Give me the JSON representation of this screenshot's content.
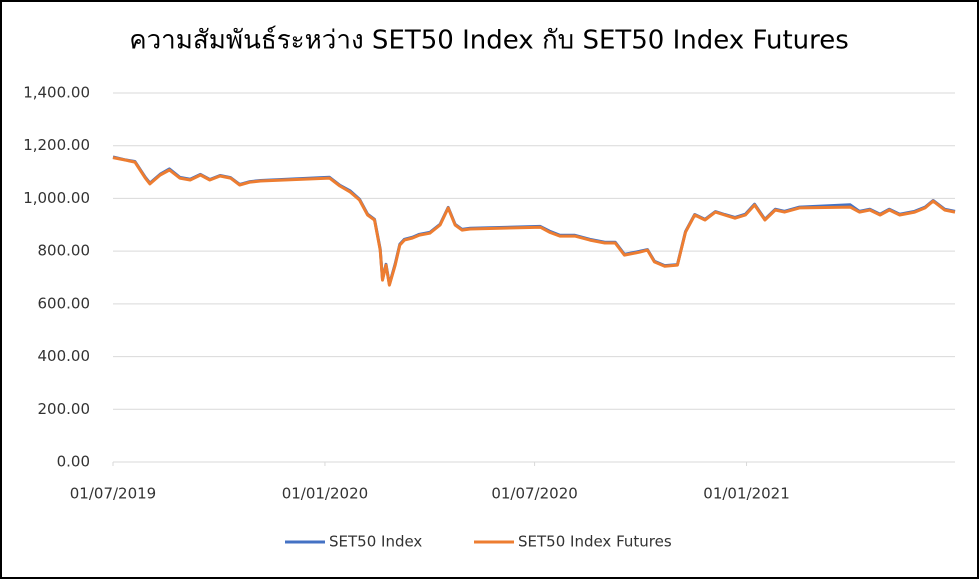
{
  "chart_data": {
    "type": "line",
    "title": "ความสัมพันธ์ระหว่าง SET50 Index กับ SET50 Index Futures",
    "x": [
      "2019-07-01",
      "2019-07-11",
      "2019-07-20",
      "2019-07-29",
      "2019-08-02",
      "2019-08-11",
      "2019-08-19",
      "2019-08-28",
      "2019-09-06",
      "2019-09-15",
      "2019-09-23",
      "2019-10-02",
      "2019-10-11",
      "2019-10-19",
      "2019-10-28",
      "2019-11-06",
      "2020-01-05",
      "2020-01-14",
      "2020-01-23",
      "2020-01-31",
      "2020-02-07",
      "2020-02-13",
      "2020-02-18",
      "2020-02-20",
      "2020-02-23",
      "2020-02-26",
      "2020-03-02",
      "2020-03-06",
      "2020-03-10",
      "2020-03-17",
      "2020-03-23",
      "2020-04-01",
      "2020-04-10",
      "2020-04-17",
      "2020-04-23",
      "2020-04-29",
      "2020-05-06",
      "2020-07-06",
      "2020-07-14",
      "2020-07-23",
      "2020-08-05",
      "2020-08-18",
      "2020-08-31",
      "2020-09-09",
      "2020-09-17",
      "2020-09-30",
      "2020-10-07",
      "2020-10-13",
      "2020-10-22",
      "2020-11-02",
      "2020-11-09",
      "2020-11-17",
      "2020-11-26",
      "2020-12-05",
      "2020-12-13",
      "2020-12-22",
      "2020-12-31",
      "2021-01-08",
      "2021-01-17",
      "2021-01-26",
      "2021-02-03",
      "2021-02-16",
      "2021-04-01",
      "2021-04-09",
      "2021-04-18",
      "2021-04-27",
      "2021-05-05",
      "2021-05-14",
      "2021-05-27",
      "2021-06-05",
      "2021-06-12",
      "2021-06-22",
      "2021-07-01"
    ],
    "series": [
      {
        "name": "SET50 Index",
        "color": "#4472c4",
        "values": [
          1157,
          1147,
          1140,
          1080,
          1058,
          1092,
          1112,
          1080,
          1073,
          1091,
          1072,
          1087,
          1079,
          1053,
          1064,
          1068,
          1080,
          1050,
          1028,
          997,
          940,
          921,
          808,
          694,
          750,
          674,
          752,
          826,
          845,
          853,
          864,
          871,
          902,
          966,
          902,
          883,
          887,
          894,
          876,
          860,
          860,
          845,
          834,
          834,
          788,
          799,
          806,
          762,
          745,
          749,
          874,
          939,
          921,
          950,
          939,
          928,
          940,
          978,
          921,
          959,
          951,
          967,
          976,
          951,
          959,
          940,
          959,
          940,
          951,
          967,
          992,
          959,
          951
        ]
      },
      {
        "name": "SET50 Index Futures",
        "color": "#ed7d31",
        "values": [
          1155,
          1146,
          1138,
          1077,
          1055,
          1089,
          1108,
          1077,
          1070,
          1089,
          1070,
          1085,
          1077,
          1051,
          1062,
          1066,
          1077,
          1047,
          1024,
          994,
          937,
          918,
          804,
          690,
          747,
          671,
          747,
          823,
          842,
          850,
          861,
          868,
          899,
          964,
          899,
          880,
          884,
          891,
          872,
          857,
          857,
          842,
          831,
          831,
          785,
          796,
          804,
          759,
          743,
          747,
          872,
          937,
          918,
          948,
          937,
          925,
          937,
          975,
          918,
          956,
          948,
          964,
          967,
          948,
          956,
          937,
          956,
          937,
          948,
          964,
          990,
          956,
          948
        ]
      }
    ],
    "xlim": [
      "2019-07-01",
      "2021-07-01"
    ],
    "xticks": [
      {
        "value": "2019-07-01",
        "label": "01/07/2019"
      },
      {
        "value": "2020-01-01",
        "label": "01/01/2020"
      },
      {
        "value": "2020-07-01",
        "label": "01/07/2020"
      },
      {
        "value": "2021-01-01",
        "label": "01/01/2021"
      }
    ],
    "ylim": [
      0,
      1400
    ],
    "yticks": [
      {
        "value": 0,
        "label": "0.00"
      },
      {
        "value": 200,
        "label": "200.00"
      },
      {
        "value": 400,
        "label": "400.00"
      },
      {
        "value": 600,
        "label": "600.00"
      },
      {
        "value": 800,
        "label": "800.00"
      },
      {
        "value": 1000,
        "label": "1,000.00"
      },
      {
        "value": 1200,
        "label": "1,200.00"
      },
      {
        "value": 1400,
        "label": "1,400.00"
      }
    ],
    "grid": true,
    "legend": "bottom"
  }
}
